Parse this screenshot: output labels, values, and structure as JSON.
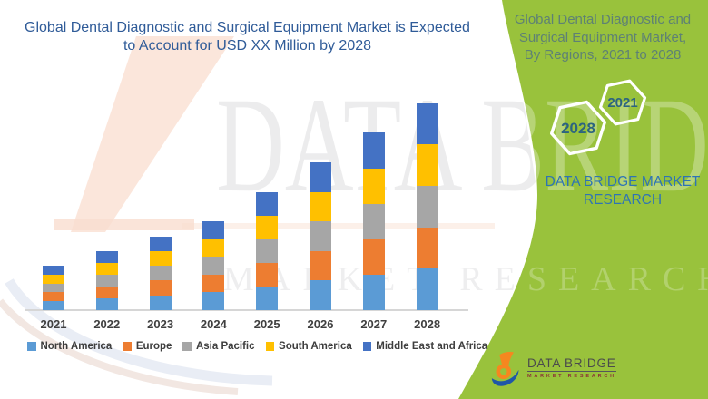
{
  "page_title": {
    "line1": "Global Dental Diagnostic and Surgical Equipment Market is Expected",
    "line2": "to Account for USD XX Million by 2028"
  },
  "side_panel": {
    "title_line1": "Global Dental Diagnostic and",
    "title_line2": "Surgical Equipment Market,",
    "title_line3": "By Regions, 2021 to 2028",
    "hexagon_small_label": "2021",
    "hexagon_large_label": "2028",
    "caption_line1": "DATA BRIDGE MARKET",
    "caption_line2": "RESEARCH"
  },
  "footer_logo": {
    "brand": "DATA BRIDGE",
    "subtitle": "MARKET RESEARCH"
  },
  "watermark": {
    "big_text": "DATA BRIDGE",
    "sub_text": "MARKET RESEARCH"
  },
  "colors": {
    "green_background": "#99c23c",
    "left_title_blue": "#2f5b98",
    "side_title_teal": "#5e8174",
    "caption_blue": "#2e74b5",
    "hexagon_label_blue": "#2c6480",
    "hexagon_outline": "#ffffff",
    "axis_line_gray": "#d6d6d6",
    "tick_label_gray": "#3f3f3f",
    "legend_text_gray": "#3d3d3d",
    "logo_orange": "#f6871f",
    "logo_blue": "#2057a7",
    "logo_text_gray": "#4a4a4c",
    "logo_subtext_maroon": "#8b3535",
    "watermark_peach": "#f9ddcf"
  },
  "chart_data": {
    "type": "bar",
    "stacked": true,
    "title": "Global Dental Diagnostic and Surgical Equipment Market is Expected to Account for USD XX Million by 2028",
    "xlabel": "",
    "ylabel": "",
    "value_axis_visible": false,
    "grid": false,
    "legend_position": "bottom",
    "unit_note": "no value axis shown in image (USD XX Million placeholder); values are relative estimates from bar heights",
    "categories": [
      "2021",
      "2022",
      "2023",
      "2024",
      "2025",
      "2026",
      "2027",
      "2028"
    ],
    "stack_order_bottom_to_top": [
      "North America",
      "Europe",
      "Asia Pacific",
      "South America",
      "Middle East and Africa"
    ],
    "series": [
      {
        "name": "North America",
        "color": "#5B9BD5",
        "values": [
          0.6,
          0.8,
          1.0,
          1.2,
          1.6,
          2.0,
          2.4,
          2.8
        ]
      },
      {
        "name": "Europe",
        "color": "#ED7D31",
        "values": [
          0.6,
          0.8,
          1.0,
          1.2,
          1.6,
          2.0,
          2.4,
          2.8
        ]
      },
      {
        "name": "Asia Pacific",
        "color": "#A6A6A6",
        "values": [
          0.6,
          0.8,
          1.0,
          1.2,
          1.6,
          2.0,
          2.4,
          2.8
        ]
      },
      {
        "name": "South America",
        "color": "#FFC000",
        "values": [
          0.6,
          0.8,
          1.0,
          1.2,
          1.6,
          2.0,
          2.4,
          2.8
        ]
      },
      {
        "name": "Middle East and Africa",
        "color": "#4472C4",
        "values": [
          0.6,
          0.8,
          1.0,
          1.2,
          1.6,
          2.0,
          2.4,
          2.8
        ]
      }
    ],
    "totals": [
      3,
      4,
      5,
      6,
      8,
      10,
      12,
      14
    ],
    "ylim": [
      0,
      15
    ]
  }
}
